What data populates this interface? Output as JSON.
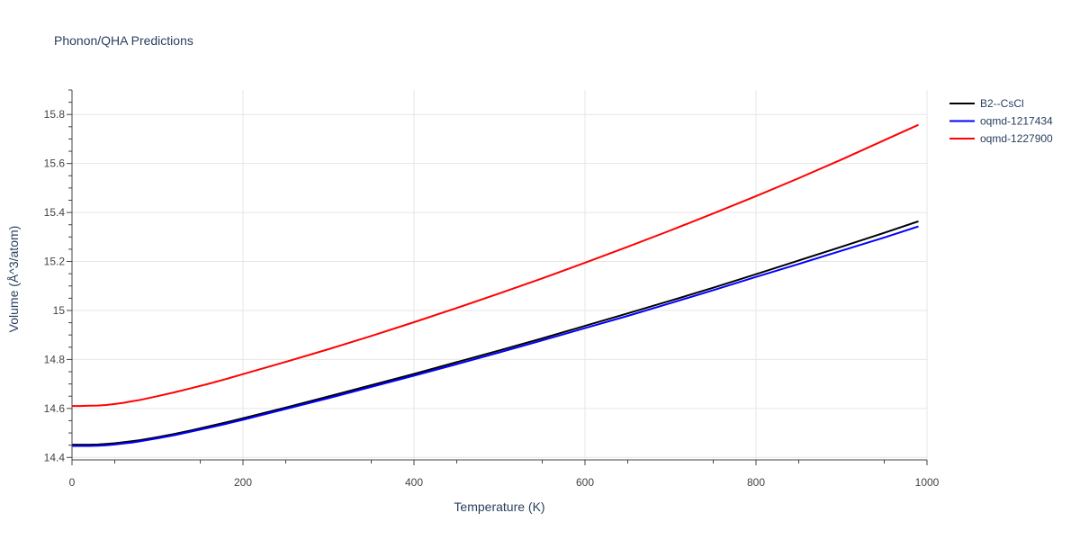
{
  "chart_data": {
    "type": "line",
    "title": "Phonon/QHA Predictions",
    "xlabel": "Temperature (K)",
    "ylabel": "Volume (Å^3/atom)",
    "xlim": [
      0,
      1000
    ],
    "ylim": [
      14.39,
      15.9
    ],
    "x_ticks": [
      0,
      200,
      400,
      600,
      800,
      1000
    ],
    "y_ticks": [
      14.4,
      14.6,
      14.8,
      15,
      15.2,
      15.4,
      15.6,
      15.8
    ],
    "x_tick_labels": [
      "0",
      "200",
      "400",
      "600",
      "800",
      "1000"
    ],
    "y_tick_labels": [
      "14.4",
      "14.6",
      "14.8",
      "15",
      "15.2",
      "15.4",
      "15.6",
      "15.8"
    ],
    "grid": true,
    "legend_position": "top-right",
    "series": [
      {
        "name": "B2--CsCl",
        "color": "#000000",
        "x": [
          0,
          10,
          20,
          30,
          40,
          50,
          60,
          70,
          80,
          100,
          120,
          140,
          160,
          180,
          200,
          250,
          300,
          350,
          400,
          450,
          500,
          550,
          600,
          650,
          700,
          750,
          800,
          850,
          900,
          950,
          990
        ],
        "y": [
          14.452,
          14.452,
          14.452,
          14.453,
          14.455,
          14.458,
          14.462,
          14.466,
          14.471,
          14.483,
          14.496,
          14.511,
          14.527,
          14.543,
          14.56,
          14.604,
          14.649,
          14.695,
          14.741,
          14.789,
          14.837,
          14.886,
          14.937,
          14.988,
          15.04,
          15.093,
          15.148,
          15.204,
          15.26,
          15.317,
          15.364
        ]
      },
      {
        "name": "oqmd-1217434",
        "color": "#0000ff",
        "x": [
          0,
          10,
          20,
          30,
          40,
          50,
          60,
          70,
          80,
          100,
          120,
          140,
          160,
          180,
          200,
          250,
          300,
          350,
          400,
          450,
          500,
          550,
          600,
          650,
          700,
          750,
          800,
          850,
          900,
          950,
          990
        ],
        "y": [
          14.447,
          14.447,
          14.447,
          14.448,
          14.45,
          14.453,
          14.457,
          14.461,
          14.466,
          14.478,
          14.491,
          14.506,
          14.521,
          14.537,
          14.554,
          14.598,
          14.642,
          14.688,
          14.734,
          14.781,
          14.829,
          14.878,
          14.928,
          14.978,
          15.03,
          15.083,
          15.137,
          15.19,
          15.244,
          15.298,
          15.343
        ]
      },
      {
        "name": "oqmd-1227900",
        "color": "#ff0000",
        "x": [
          0,
          10,
          20,
          30,
          40,
          50,
          60,
          70,
          80,
          100,
          120,
          140,
          160,
          180,
          200,
          250,
          300,
          350,
          400,
          450,
          500,
          550,
          600,
          650,
          700,
          750,
          800,
          850,
          900,
          950,
          990
        ],
        "y": [
          14.61,
          14.61,
          14.611,
          14.612,
          14.614,
          14.618,
          14.623,
          14.629,
          14.635,
          14.65,
          14.666,
          14.683,
          14.701,
          14.72,
          14.74,
          14.79,
          14.842,
          14.896,
          14.952,
          15.01,
          15.07,
          15.131,
          15.195,
          15.26,
          15.327,
          15.396,
          15.467,
          15.54,
          15.616,
          15.695,
          15.758
        ]
      }
    ]
  }
}
